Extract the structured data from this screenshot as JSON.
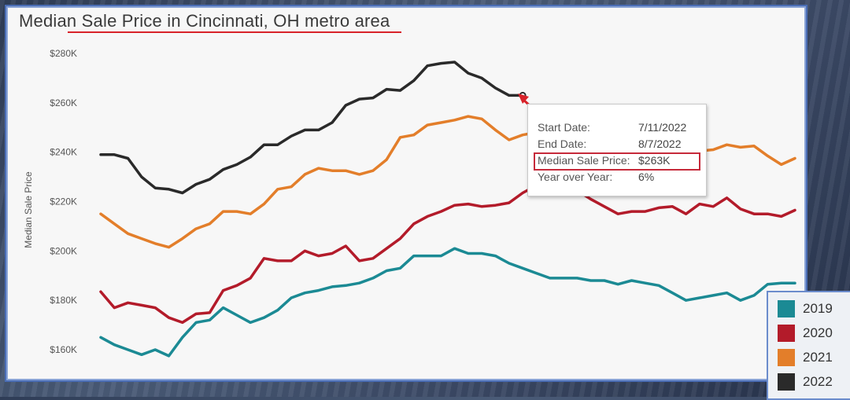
{
  "chart_data": {
    "type": "line",
    "title": "Median Sale Price in Cincinnati, OH metro area",
    "ylabel": "Median Sale Price",
    "xlabel": "",
    "ylim": [
      155000,
      283000
    ],
    "yticks": [
      160000,
      180000,
      200000,
      220000,
      240000,
      260000,
      280000
    ],
    "ytick_labels": [
      "$160K",
      "$180K",
      "$200K",
      "$220K",
      "$240K",
      "$260K",
      "$280K"
    ],
    "grid": false,
    "legend_position": "bottom-right",
    "series": [
      {
        "name": "2019",
        "color": "#1b8a94",
        "values": [
          165000,
          162000,
          160000,
          158000,
          160000,
          157500,
          165000,
          171000,
          172000,
          177000,
          174000,
          171000,
          173000,
          176000,
          181000,
          183000,
          184000,
          185500,
          186000,
          187000,
          189000,
          192000,
          193000,
          198000,
          198000,
          198000,
          201000,
          199000,
          199000,
          198000,
          195000,
          193000,
          191000,
          189000,
          189000,
          189000,
          188000,
          188000,
          186500,
          188000,
          187000,
          186000,
          183000,
          180000,
          181000,
          182000,
          183000,
          180000,
          182000,
          186500,
          187000,
          187000
        ]
      },
      {
        "name": "2020",
        "color": "#b31b2a",
        "values": [
          183500,
          177000,
          179000,
          178000,
          177000,
          173000,
          171000,
          174500,
          175000,
          184000,
          186000,
          189000,
          197000,
          196000,
          196000,
          200000,
          198000,
          199000,
          202000,
          196000,
          197000,
          201000,
          205000,
          211000,
          214000,
          216000,
          218500,
          219000,
          218000,
          218500,
          219500,
          223500,
          226500,
          228000,
          227000,
          224500,
          221000,
          218000,
          215000,
          216000,
          216000,
          217500,
          218000,
          215000,
          219000,
          218000,
          221500,
          217000,
          215000,
          215000,
          214000,
          216500
        ]
      },
      {
        "name": "2021",
        "color": "#e37e2a",
        "values": [
          215000,
          211000,
          207000,
          205000,
          203000,
          201500,
          205000,
          209000,
          211000,
          216000,
          216000,
          215000,
          219000,
          225000,
          226000,
          231000,
          233500,
          232500,
          232500,
          231000,
          232500,
          237000,
          246000,
          247000,
          251000,
          252000,
          253000,
          254500,
          253500,
          249000,
          245000,
          247000,
          248000,
          247500,
          247000,
          245500,
          243500,
          242500,
          242000,
          241500,
          241000,
          240500,
          240000,
          240500,
          240500,
          241000,
          243000,
          242000,
          242500,
          238500,
          235000,
          237500
        ]
      },
      {
        "name": "2022",
        "color": "#2a2a2a",
        "values": [
          239000,
          239000,
          237500,
          230000,
          225500,
          225000,
          223500,
          227000,
          229000,
          233000,
          235000,
          238000,
          243000,
          243000,
          246500,
          249000,
          249000,
          252000,
          259000,
          261500,
          262000,
          265500,
          265000,
          269000,
          275000,
          276000,
          276500,
          272000,
          270000,
          266000,
          263000,
          263000
        ]
      }
    ],
    "tooltip": {
      "rows": [
        {
          "label": "Start Date:",
          "value": "7/11/2022"
        },
        {
          "label": "End Date:",
          "value": "8/7/2022"
        },
        {
          "label": "Median Sale Price:",
          "value": "$263K"
        },
        {
          "label": "Year over Year:",
          "value": "6%"
        }
      ]
    }
  },
  "legend": {
    "items": [
      {
        "label": "2019",
        "color": "#1b8a94"
      },
      {
        "label": "2020",
        "color": "#b31b2a"
      },
      {
        "label": "2021",
        "color": "#e37e2a"
      },
      {
        "label": "2022",
        "color": "#2a2a2a"
      }
    ]
  }
}
